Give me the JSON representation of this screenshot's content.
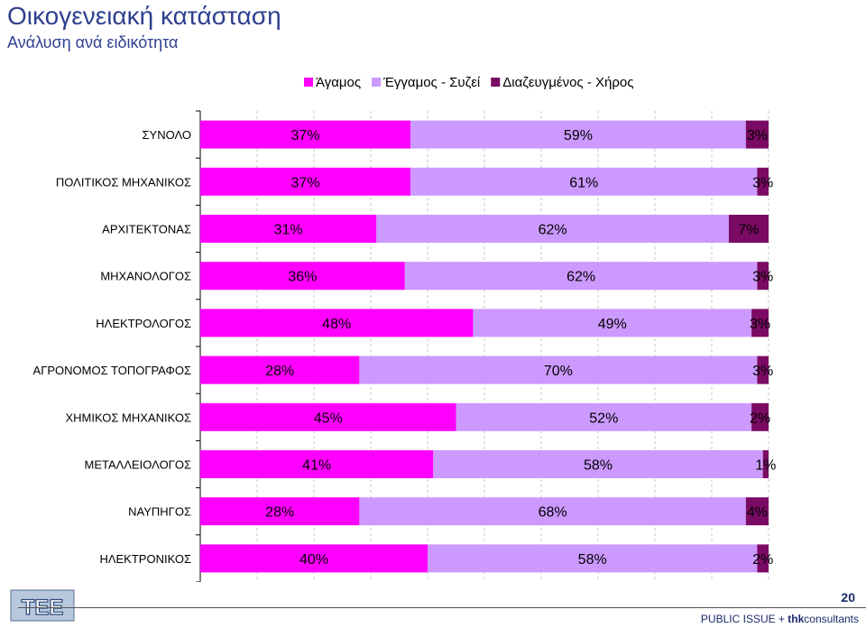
{
  "header": {
    "title": "Οικογενειακή κατάσταση",
    "subtitle": "Ανάλυση ανά ειδικότητα"
  },
  "footer": {
    "page_number": "20",
    "brand_prefix": "PUBLIC ISSUE + ",
    "brand_bold": "thk",
    "brand_suffix": "consultants"
  },
  "logo": {
    "label": "ΤΕΕ",
    "icon": "tee-logo-icon"
  },
  "colors": {
    "title": "#2f3f8f",
    "series": [
      "#ff00ff",
      "#cc99ff",
      "#7a0a63"
    ]
  },
  "chart_data": {
    "type": "bar",
    "orientation": "horizontal",
    "stacked": true,
    "categories": [
      "ΣΥΝΟΛΟ",
      "ΠΟΛΙΤΙΚΟΣ ΜΗΧΑΝΙΚΟΣ",
      "ΑΡΧΙΤΕΚΤΟΝΑΣ",
      "ΜΗΧΑΝΟΛΟΓΟΣ",
      "ΗΛΕΚΤΡΟΛΟΓΟΣ",
      "ΑΓΡΟΝΟΜΟΣ ΤΟΠΟΓΡΑΦΟΣ",
      "ΧΗΜΙΚΟΣ ΜΗΧΑΝΙΚΟΣ",
      "ΜΕΤΑΛΛΕΙΟΛΟΓΟΣ",
      "ΝΑΥΠΗΓΟΣ",
      "ΗΛΕΚΤΡΟΝΙΚΟΣ"
    ],
    "series": [
      {
        "name": "Άγαμος",
        "values": [
          37,
          37,
          31,
          36,
          48,
          28,
          45,
          41,
          28,
          40
        ]
      },
      {
        "name": "Έγγαμος - Συζεί",
        "values": [
          59,
          61,
          62,
          62,
          49,
          70,
          52,
          58,
          68,
          58
        ]
      },
      {
        "name": "Διαζευγμένος - Χήρος",
        "values": [
          3,
          3,
          7,
          3,
          3,
          3,
          2,
          1,
          4,
          2
        ]
      }
    ],
    "value_suffix": "%",
    "xlim": [
      0,
      100
    ],
    "legend": "top",
    "grid": "dashed vertical"
  }
}
